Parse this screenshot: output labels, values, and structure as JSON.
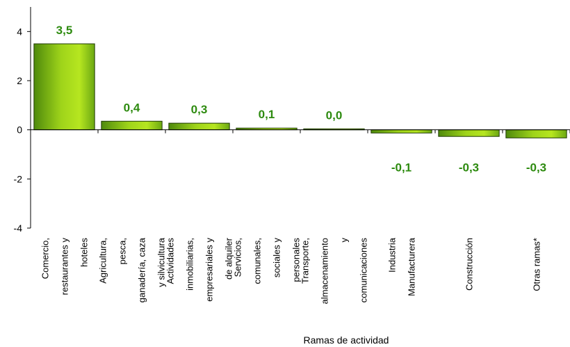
{
  "chart_data": {
    "type": "bar",
    "title": "",
    "xlabel": "Ramas de actividad",
    "ylabel": "",
    "ylim": [
      -4,
      5
    ],
    "yticks": [
      -4,
      -2,
      0,
      2,
      4
    ],
    "grid": false,
    "legend": "none",
    "categories": [
      [
        "Comercio,",
        "restaurantes y",
        "hoteles"
      ],
      [
        "Agricultura,",
        "pesca,",
        "ganadería, caza",
        "y silvicultura"
      ],
      [
        "Actividades",
        "inmobiliarias,",
        "empresariales y",
        "de alquiler"
      ],
      [
        "Servicios,",
        "comunales,",
        "sociales y",
        "personales"
      ],
      [
        "Transporte,",
        "almacenamiento",
        "y",
        "comunicaciones"
      ],
      [
        "Industria",
        "Manufacturera"
      ],
      [
        "Construcción"
      ],
      [
        "Otras ramas*"
      ]
    ],
    "values": [
      3.5,
      0.35,
      0.27,
      0.07,
      0.04,
      -0.13,
      -0.27,
      -0.33
    ],
    "data_labels": [
      "3,5",
      "0,4",
      "0,3",
      "0,1",
      "0,0",
      "-0,1",
      "-0,3",
      "-0,3"
    ],
    "colors": {
      "bar_light": "#b5e61d",
      "bar_dark": "#4a7d0a",
      "label": "#2e8b10",
      "axis": "#000000"
    }
  }
}
